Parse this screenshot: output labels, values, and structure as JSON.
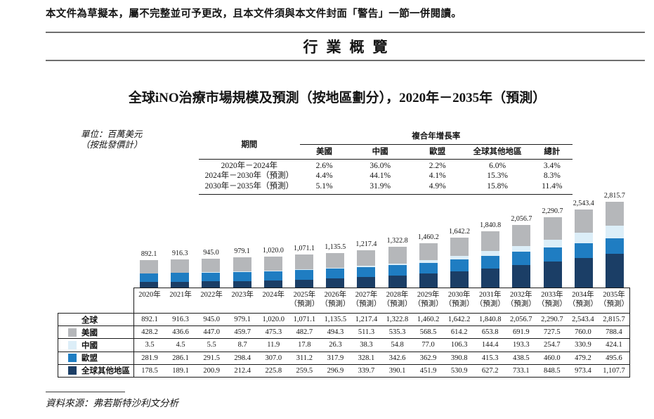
{
  "header": {
    "disclaimer": "本文件為草擬本，屬不完整並可予更改，且本文件須與本文件封面「警告」一節一併閱讀。",
    "section_title": "行業概覽"
  },
  "chart": {
    "title": "全球iNO治療市場規模及預測（按地區劃分），2020年－2035年（預測）",
    "unit_note_line1": "單位：百萬美元",
    "unit_note_line2": "（按批發價計）",
    "source": "資料來源：弗若斯特沙利文分析"
  },
  "cagr_table": {
    "period_header": "期間",
    "group_header": "複合年增長率",
    "columns": [
      "美國",
      "中國",
      "歐盟",
      "全球其他地區",
      "總計"
    ],
    "rows": [
      {
        "period": "2020年－2024年",
        "values": [
          "2.6%",
          "36.0%",
          "2.2%",
          "6.0%",
          "3.4%"
        ]
      },
      {
        "period": "2024年－2030年（預測）",
        "values": [
          "4.4%",
          "44.1%",
          "4.1%",
          "15.3%",
          "8.3%"
        ]
      },
      {
        "period": "2030年－2035年（預測）",
        "values": [
          "5.1%",
          "31.9%",
          "4.9%",
          "15.8%",
          "11.4%"
        ]
      }
    ]
  },
  "chart_data": {
    "type": "bar",
    "stacked": true,
    "title": "全球iNO治療市場規模及預測（按地區劃分），2020年－2035年（預測）",
    "unit": "百萬美元（按批發價計）",
    "categories": [
      "2020年",
      "2021年",
      "2022年",
      "2023年",
      "2024年",
      "2025年",
      "2026年",
      "2027年",
      "2028年",
      "2029年",
      "2030年",
      "2031年",
      "2032年",
      "2033年",
      "2034年",
      "2035年"
    ],
    "forecast_from_index": 5,
    "forecast_suffix": "（預測）",
    "total_row_label": "全球",
    "totals": [
      892.1,
      916.3,
      945.0,
      979.1,
      1020.0,
      1071.1,
      1135.5,
      1217.4,
      1322.8,
      1460.2,
      1642.2,
      1840.8,
      2056.7,
      2290.7,
      2543.4,
      2815.7
    ],
    "series": [
      {
        "key": "us",
        "name": "美國",
        "color": "#b5b7ba",
        "values": [
          428.2,
          436.6,
          447.0,
          459.7,
          475.3,
          482.7,
          494.3,
          511.3,
          535.3,
          568.5,
          614.2,
          653.8,
          691.9,
          727.5,
          760.0,
          788.4
        ]
      },
      {
        "key": "china",
        "name": "中國",
        "color": "#dceef8",
        "values": [
          3.5,
          4.5,
          5.5,
          8.7,
          11.9,
          17.8,
          26.3,
          38.3,
          54.8,
          77.0,
          106.3,
          144.4,
          193.3,
          254.7,
          330.9,
          424.1
        ]
      },
      {
        "key": "eu",
        "name": "歐盟",
        "color": "#1f7dc2",
        "values": [
          281.9,
          286.1,
          291.5,
          298.4,
          307.0,
          311.2,
          317.9,
          328.1,
          342.6,
          362.9,
          390.8,
          415.3,
          438.5,
          460.0,
          479.2,
          495.6
        ]
      },
      {
        "key": "row",
        "name": "全球其他地區",
        "color": "#1b3e66",
        "values": [
          178.5,
          189.1,
          200.9,
          212.4,
          225.8,
          259.5,
          296.9,
          339.7,
          390.1,
          451.9,
          530.9,
          627.2,
          733.1,
          848.5,
          973.4,
          1107.7
        ]
      }
    ],
    "stack_order_bottom_to_top": [
      "row",
      "eu",
      "china",
      "us"
    ],
    "legend_position": "table-left",
    "grid": false
  }
}
